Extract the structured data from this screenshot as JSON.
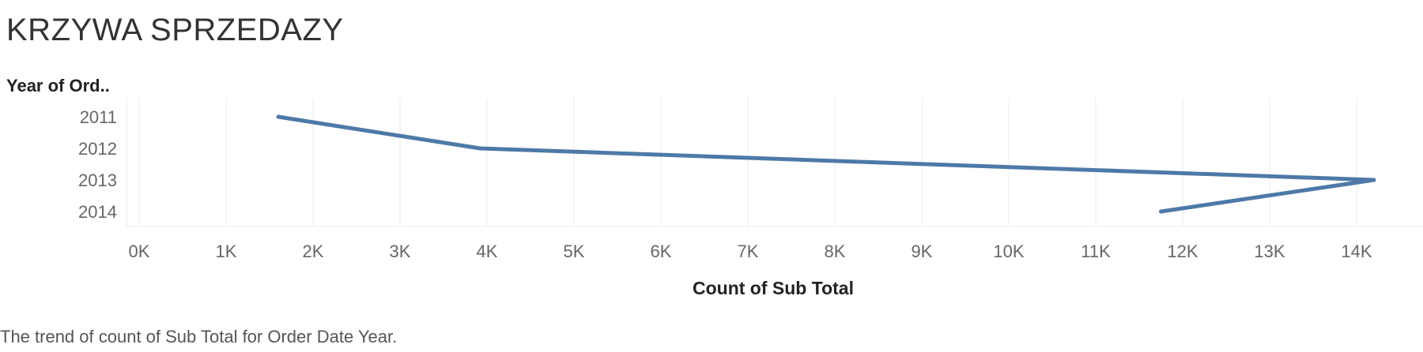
{
  "chart_data": {
    "type": "line",
    "title": "KRZYWA SPRZEDAZY",
    "ylabel": "Year of Ord..",
    "xlabel": "Count of Sub Total",
    "caption": "The trend of count of Sub Total for Order Date Year.",
    "categories": [
      "2011",
      "2012",
      "2013",
      "2014"
    ],
    "series": [
      {
        "values": [
          1600,
          3920,
          14200,
          11750
        ]
      }
    ],
    "xlim": [
      0,
      14500
    ],
    "x_ticks": [
      0,
      1000,
      2000,
      3000,
      4000,
      5000,
      6000,
      7000,
      8000,
      9000,
      10000,
      11000,
      12000,
      13000,
      14000
    ],
    "x_tick_labels": [
      "0K",
      "1K",
      "2K",
      "3K",
      "4K",
      "5K",
      "6K",
      "7K",
      "8K",
      "9K",
      "10K",
      "11K",
      "12K",
      "13K",
      "14K"
    ],
    "grid": true,
    "orientation": "horizontal-values",
    "line_color": "#4e79a7",
    "grid_color": "#ebebeb"
  }
}
